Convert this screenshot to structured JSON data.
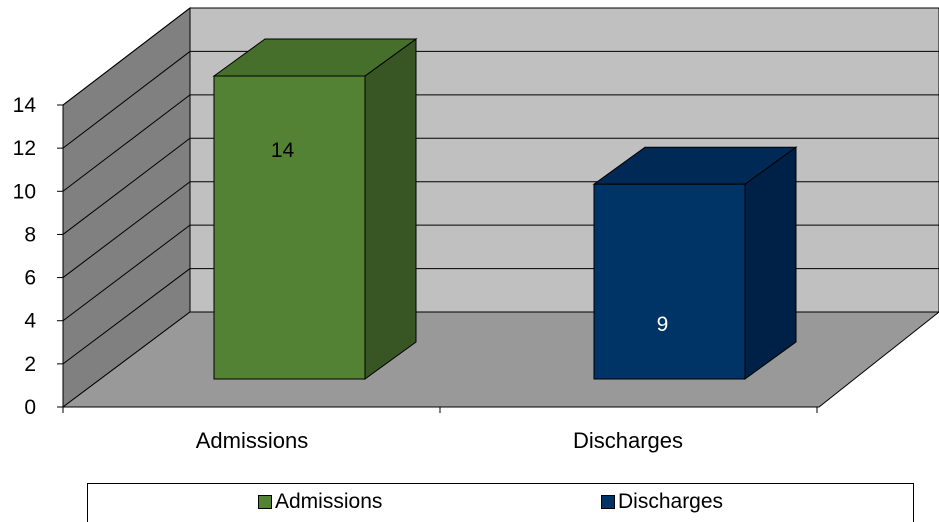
{
  "chart_data": {
    "type": "bar",
    "style": "3d-column",
    "categories": [
      "Admissions",
      "Discharges"
    ],
    "values": [
      14,
      9
    ],
    "data_labels": [
      "14",
      "9"
    ],
    "ylim": [
      0,
      14
    ],
    "yticks": [
      "0",
      "2",
      "4",
      "6",
      "8",
      "10",
      "12",
      "14"
    ],
    "grid": true,
    "legend_placement": "bottom",
    "legend": [
      {
        "name": "Admissions"
      },
      {
        "name": "Discharges"
      }
    ],
    "colors": {
      "admissions_front": "#548235",
      "admissions_side": "#375623",
      "admissions_top": "#466f2c",
      "discharges_front": "#003366",
      "discharges_side": "#002147",
      "discharges_top": "#002a55",
      "back_wall": "#c0c0c0",
      "side_wall": "#808080",
      "floor": "#999999",
      "label_on_green": "#000000",
      "label_on_blue": "#ffffff"
    }
  }
}
